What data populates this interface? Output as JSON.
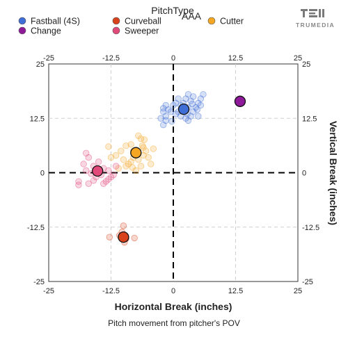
{
  "legend_title": "PitchType",
  "level_label": "AAA",
  "brand_name": "TRUMEDIA",
  "chart_data": {
    "type": "scatter",
    "xlabel": "Horizontal Break (inches)",
    "ylabel": "Vertical Break (inches)",
    "caption": "Pitch movement from pitcher's POV",
    "xlim": [
      -25,
      25
    ],
    "ylim": [
      -25,
      25
    ],
    "ticks": [
      "-25",
      "-12.5",
      "0",
      "12.5",
      "25"
    ],
    "tick_values": [
      -25,
      -12.5,
      0,
      12.5,
      25
    ],
    "grid": true,
    "legend_position": "top-left",
    "series": [
      {
        "name": "Fastball (4S)",
        "color": "#3f6fd6",
        "average": [
          2.1,
          14.6
        ],
        "points": [
          [
            0.5,
            16
          ],
          [
            1,
            17
          ],
          [
            0,
            15.5
          ],
          [
            -0.5,
            14
          ],
          [
            -1,
            14.5
          ],
          [
            -1.5,
            13
          ],
          [
            -2,
            14
          ],
          [
            -2.5,
            12.5
          ],
          [
            -1.5,
            12
          ],
          [
            -2,
            11
          ],
          [
            -0.3,
            11.8
          ],
          [
            1,
            14
          ],
          [
            1.5,
            15.5
          ],
          [
            2,
            16
          ],
          [
            2.5,
            17
          ],
          [
            3,
            18
          ],
          [
            3.5,
            16.5
          ],
          [
            4,
            17.5
          ],
          [
            3,
            15
          ],
          [
            2.8,
            13.5
          ],
          [
            3.5,
            13
          ],
          [
            4,
            14
          ],
          [
            4.5,
            15
          ],
          [
            5,
            16
          ],
          [
            5.5,
            17
          ],
          [
            6,
            18
          ],
          [
            5.5,
            15.5
          ],
          [
            5,
            13
          ],
          [
            4.8,
            14.5
          ],
          [
            2.5,
            12.5
          ],
          [
            3,
            12
          ],
          [
            1.5,
            13
          ],
          [
            0.5,
            13.5
          ],
          [
            -2,
            14.8
          ],
          [
            -1.5,
            15.5
          ],
          [
            3.8,
            15.8
          ]
        ]
      },
      {
        "name": "Curveball",
        "color": "#d9431c",
        "average": [
          -10,
          -14.8
        ],
        "points": [
          [
            -10,
            -12.2
          ],
          [
            -10.3,
            -13.6
          ],
          [
            -10.8,
            -14.4
          ],
          [
            -9.5,
            -15.2
          ],
          [
            -12.8,
            -14.8
          ],
          [
            -7.8,
            -15
          ],
          [
            -9.8,
            -16
          ]
        ]
      },
      {
        "name": "Cutter",
        "color": "#f5a623",
        "average": [
          -7.5,
          4.6
        ],
        "points": [
          [
            -7,
            8.5
          ],
          [
            -6.5,
            7.8
          ],
          [
            -5.8,
            7.6
          ],
          [
            -6.2,
            6.2
          ],
          [
            -8.5,
            6.5
          ],
          [
            -9.5,
            6.2
          ],
          [
            -10.5,
            5
          ],
          [
            -11.5,
            4
          ],
          [
            -10,
            3
          ],
          [
            -9,
            2
          ],
          [
            -8,
            3.5
          ],
          [
            -7,
            3
          ],
          [
            -6,
            4
          ],
          [
            -5.5,
            5
          ],
          [
            -5,
            3.5
          ],
          [
            -4,
            5.5
          ],
          [
            -4.5,
            2
          ],
          [
            -6.5,
            1.5
          ],
          [
            -7.5,
            0.5
          ],
          [
            -8.5,
            2.5
          ],
          [
            -9.5,
            1.5
          ],
          [
            -12.5,
            3.5
          ],
          [
            -13,
            6
          ],
          [
            -11,
            1
          ],
          [
            -8,
            5
          ],
          [
            -6,
            5.8
          ],
          [
            -8.2,
            1.2
          ]
        ]
      },
      {
        "name": "Change",
        "color": "#8e1a9a",
        "average": [
          13.4,
          16.4
        ],
        "points": []
      },
      {
        "name": "Sweeper",
        "color": "#e2497b",
        "average": [
          -15.2,
          0.4
        ],
        "points": [
          [
            -17.5,
            4.5
          ],
          [
            -17,
            3.5
          ],
          [
            -18,
            2
          ],
          [
            -16,
            1.5
          ],
          [
            -15,
            2.5
          ],
          [
            -14,
            1
          ],
          [
            -14.5,
            -0.5
          ],
          [
            -13,
            -1.5
          ],
          [
            -12.5,
            -1
          ],
          [
            -13.5,
            -2
          ],
          [
            -14,
            -2.5
          ],
          [
            -15.5,
            -1
          ],
          [
            -16,
            -1.8
          ],
          [
            -17.5,
            0.5
          ],
          [
            -16.5,
            -0.2
          ],
          [
            -19,
            -2
          ],
          [
            -19,
            -2.8
          ],
          [
            -17,
            -2.5
          ],
          [
            -13,
            0.5
          ],
          [
            -12,
            -0.5
          ],
          [
            -11.5,
            1.5
          ]
        ]
      }
    ]
  }
}
